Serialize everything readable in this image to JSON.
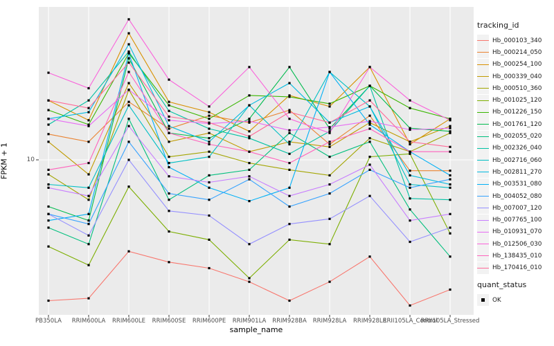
{
  "figure": {
    "xlabel": "sample_name",
    "ylabel": "FPKM + 1",
    "y_tick_label": "10"
  },
  "legend": {
    "tracking_title": "tracking_id",
    "quant_title": "quant_status",
    "quant_entries": [
      {
        "label": "OK",
        "shape": "filled-black-square"
      }
    ]
  },
  "colors": {
    "background": "#FFFFFF",
    "panel_bg": "#EBEBEB",
    "grid": "#FFFFFF",
    "point": "#000000",
    "tick": "#333333",
    "axis_text": "#4D4D4D",
    "title_text": "#000000",
    "legend_key_bg": "#F2F2F2"
  },
  "chart_data": {
    "type": "line",
    "title": "",
    "xlabel": "sample_name",
    "ylabel": "FPKM + 1",
    "x_type": "categorical",
    "y_scale": "log10",
    "y_ticks": [
      10
    ],
    "ylim": [
      1.35,
      70
    ],
    "grid": true,
    "legend_position": "right",
    "point_shape": "black-square",
    "categories": [
      "PB350LA",
      "RRIM600LA",
      "RRIM600LE",
      "RRIM600SE",
      "RRIM600PE",
      "RRIM901LA",
      "RRIM928BA",
      "RRIM928LA",
      "RRIM928LE",
      "RRII105LA_Control",
      "RRII105LA_Stressed"
    ],
    "series": [
      {
        "name": "Hb_000103_340",
        "color": "#F8766D",
        "values": [
          1.65,
          1.7,
          3.1,
          2.7,
          2.5,
          2.1,
          1.65,
          2.1,
          2.9,
          1.55,
          1.9
        ]
      },
      {
        "name": "Hb_000214_050",
        "color": "#EA8331",
        "values": [
          13.9,
          12.6,
          21.0,
          14.9,
          17.6,
          16.1,
          18.9,
          12.2,
          17.6,
          8.7,
          8.7
        ]
      },
      {
        "name": "Hb_000254_100",
        "color": "#D89000",
        "values": [
          21.4,
          16.6,
          50.5,
          21.0,
          18.4,
          14.4,
          22.8,
          19.8,
          32.8,
          12.2,
          16.9
        ]
      },
      {
        "name": "Hb_000339_040",
        "color": "#C09B00",
        "values": [
          12.6,
          8.3,
          26.7,
          12.6,
          14.1,
          11.1,
          12.6,
          11.8,
          16.1,
          12.6,
          15.4
        ]
      },
      {
        "name": "Hb_000510_360",
        "color": "#A3A500",
        "values": [
          8.3,
          6.0,
          24.5,
          10.4,
          11.1,
          9.6,
          8.8,
          8.2,
          13.2,
          11.1,
          14.1
        ]
      },
      {
        "name": "Hb_001025_120",
        "color": "#7CAE00",
        "values": [
          3.3,
          2.6,
          7.1,
          4.0,
          3.6,
          2.2,
          3.6,
          3.4,
          10.4,
          10.8,
          3.9
        ]
      },
      {
        "name": "Hb_001226_150",
        "color": "#39B600",
        "values": [
          18.9,
          15.7,
          39.1,
          20.1,
          16.9,
          22.8,
          22.4,
          20.5,
          25.8,
          19.4,
          16.9
        ]
      },
      {
        "name": "Hb_001761_120",
        "color": "#00BB4E",
        "values": [
          5.5,
          4.6,
          36.7,
          14.1,
          13.2,
          16.9,
          32.8,
          14.9,
          25.8,
          15.0,
          14.4
        ]
      },
      {
        "name": "Hb_002055_020",
        "color": "#00BF7D",
        "values": [
          4.2,
          3.4,
          16.9,
          6.0,
          8.2,
          8.8,
          14.1,
          10.4,
          12.6,
          5.3,
          2.9
        ]
      },
      {
        "name": "Hb_002326_040",
        "color": "#00C1A3",
        "values": [
          15.7,
          21.4,
          40.0,
          18.7,
          14.9,
          13.2,
          10.8,
          14.4,
          25.8,
          6.1,
          6.0
        ]
      },
      {
        "name": "Hb_002716_060",
        "color": "#00BFC4",
        "values": [
          7.3,
          7.0,
          20.1,
          9.6,
          10.4,
          20.1,
          12.2,
          30.8,
          19.8,
          7.3,
          7.0
        ]
      },
      {
        "name": "Hb_002811_270",
        "color": "#00BAE0",
        "values": [
          16.9,
          18.4,
          43.9,
          15.4,
          12.6,
          20.1,
          26.7,
          16.1,
          19.8,
          8.2,
          7.3
        ]
      },
      {
        "name": "Hb_003531_080",
        "color": "#00B0F6",
        "values": [
          4.6,
          5.0,
          39.1,
          9.1,
          7.0,
          5.9,
          7.0,
          30.8,
          15.7,
          11.1,
          8.2
        ]
      },
      {
        "name": "Hb_004052_080",
        "color": "#35A2FF",
        "values": [
          5.0,
          4.4,
          12.6,
          6.5,
          6.0,
          7.8,
          5.5,
          6.5,
          8.8,
          7.0,
          7.8
        ]
      },
      {
        "name": "Hb_007007_120",
        "color": "#9590FF",
        "values": [
          5.0,
          3.8,
          10.0,
          5.2,
          4.9,
          3.4,
          4.4,
          4.7,
          6.3,
          3.5,
          4.2
        ]
      },
      {
        "name": "Hb_007765_100",
        "color": "#C77CFF",
        "values": [
          7.0,
          6.3,
          15.4,
          8.1,
          7.5,
          8.1,
          6.3,
          7.3,
          9.4,
          4.6,
          5.0
        ]
      },
      {
        "name": "Hb_010931_070",
        "color": "#E76BF3",
        "values": [
          16.9,
          15.4,
          24.5,
          16.6,
          15.9,
          16.4,
          14.6,
          15.2,
          16.4,
          14.7,
          15.0
        ]
      },
      {
        "name": "Hb_012506_030",
        "color": "#FA62DB",
        "values": [
          30.5,
          25.0,
          60.4,
          27.9,
          19.8,
          32.8,
          16.9,
          14.1,
          32.8,
          21.4,
          16.6
        ]
      },
      {
        "name": "Hb_138435_010",
        "color": "#FF62BC",
        "values": [
          8.8,
          9.6,
          30.8,
          14.1,
          12.2,
          11.1,
          9.6,
          12.6,
          14.9,
          11.1,
          11.1
        ]
      },
      {
        "name": "Hb_170416_010",
        "color": "#FF6A98",
        "values": [
          21.4,
          19.4,
          34.7,
          17.4,
          16.1,
          13.5,
          18.4,
          16.1,
          21.4,
          12.6,
          11.8
        ]
      }
    ]
  }
}
